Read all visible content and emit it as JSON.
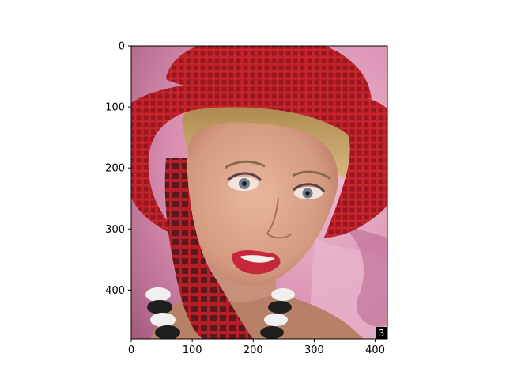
{
  "chart_data": {
    "type": "image",
    "title": "",
    "xlabel": "",
    "ylabel": "",
    "xlim": [
      0,
      420
    ],
    "ylim": [
      480,
      0
    ],
    "x_ticks": [
      0,
      100,
      200,
      300,
      400
    ],
    "y_ticks": [
      0,
      100,
      200,
      300,
      400
    ],
    "x_tick_labels": [
      "0",
      "100",
      "200",
      "300",
      "400"
    ],
    "y_tick_labels": [
      "0",
      "100",
      "200",
      "300",
      "400"
    ],
    "grid": false,
    "image": {
      "subject": "portrait of a smiling young woman with blonde hair wearing a red open-weave straw hat and red scarf, pink draped fabric background",
      "colors": {
        "background": "#d98fb0",
        "hat": "#c8242c",
        "hair": "#c9a565",
        "skin": "#d9a38a",
        "lips": "#c4283a"
      }
    },
    "corner_label": "3"
  }
}
